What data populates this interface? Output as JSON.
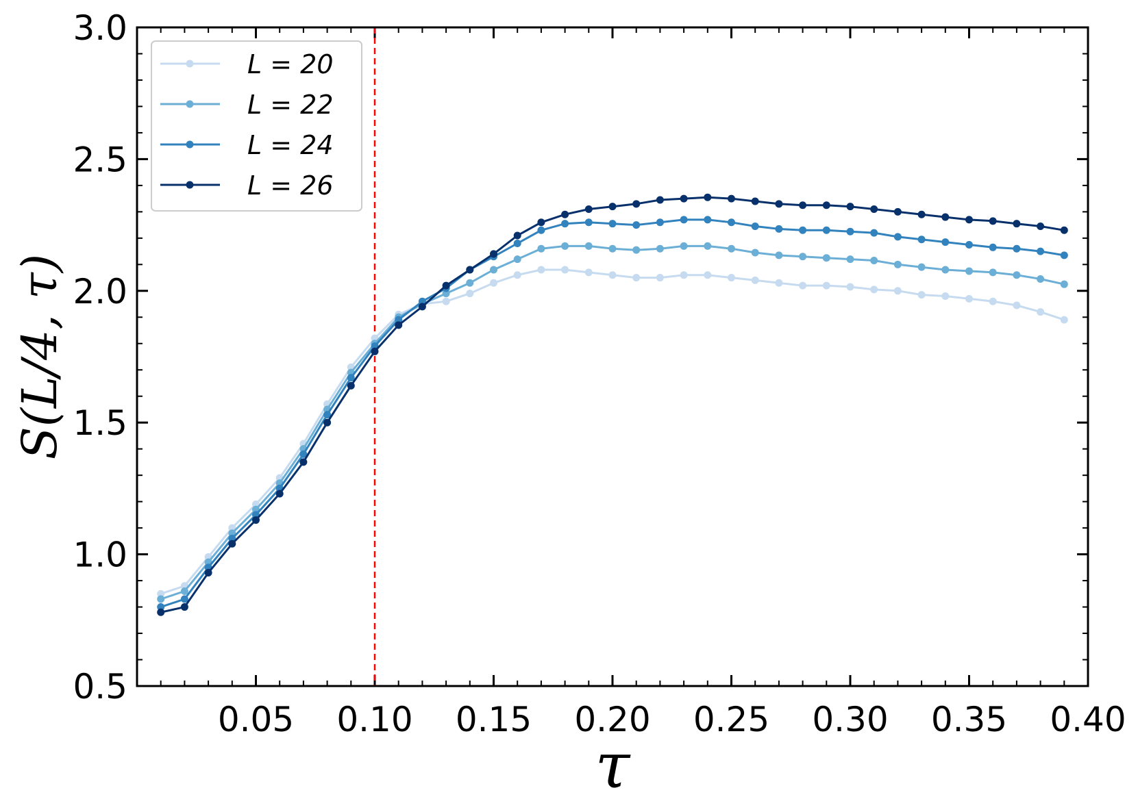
{
  "chart_data": {
    "type": "line",
    "title": "",
    "xlabel": "τ",
    "ylabel": "S(L/4, τ)",
    "xlim": [
      0.0,
      0.4
    ],
    "ylim": [
      0.5,
      3.0
    ],
    "xticks": [
      "0.05",
      "0.10",
      "0.15",
      "0.20",
      "0.25",
      "0.30",
      "0.35",
      "0.40"
    ],
    "yticks": [
      "0.5",
      "1.0",
      "1.5",
      "2.0",
      "2.5",
      "3.0"
    ],
    "legend_position": "top-left",
    "grid": false,
    "reference_line": {
      "orientation": "vertical",
      "x": 0.1,
      "style": "dashed",
      "color": "#ff0000"
    },
    "x": [
      0.01,
      0.02,
      0.03,
      0.04,
      0.05,
      0.06,
      0.07,
      0.08,
      0.09,
      0.1,
      0.11,
      0.12,
      0.13,
      0.14,
      0.15,
      0.16,
      0.17,
      0.18,
      0.19,
      0.2,
      0.21,
      0.22,
      0.23,
      0.24,
      0.25,
      0.26,
      0.27,
      0.28,
      0.29,
      0.3,
      0.31,
      0.32,
      0.33,
      0.34,
      0.35,
      0.36,
      0.37,
      0.38,
      0.39
    ],
    "series": [
      {
        "name": "L = 20",
        "color": "#c6dbef",
        "values": [
          0.85,
          0.88,
          0.99,
          1.1,
          1.19,
          1.29,
          1.42,
          1.57,
          1.71,
          1.82,
          1.91,
          1.95,
          1.96,
          1.99,
          2.03,
          2.06,
          2.08,
          2.08,
          2.07,
          2.06,
          2.05,
          2.05,
          2.06,
          2.06,
          2.05,
          2.04,
          2.03,
          2.02,
          2.02,
          2.015,
          2.005,
          2.0,
          1.985,
          1.98,
          1.97,
          1.96,
          1.945,
          1.92,
          1.89
        ]
      },
      {
        "name": "L = 22",
        "color": "#6baed6",
        "values": [
          0.83,
          0.86,
          0.97,
          1.08,
          1.17,
          1.27,
          1.4,
          1.55,
          1.69,
          1.8,
          1.9,
          1.95,
          1.99,
          2.03,
          2.08,
          2.12,
          2.16,
          2.17,
          2.17,
          2.16,
          2.155,
          2.16,
          2.17,
          2.17,
          2.16,
          2.145,
          2.135,
          2.13,
          2.125,
          2.12,
          2.115,
          2.1,
          2.09,
          2.08,
          2.075,
          2.07,
          2.06,
          2.045,
          2.025
        ]
      },
      {
        "name": "L = 24",
        "color": "#3182bd",
        "values": [
          0.8,
          0.83,
          0.95,
          1.06,
          1.15,
          1.25,
          1.38,
          1.53,
          1.67,
          1.79,
          1.89,
          1.96,
          2.01,
          2.08,
          2.13,
          2.18,
          2.23,
          2.255,
          2.26,
          2.255,
          2.25,
          2.26,
          2.27,
          2.27,
          2.26,
          2.245,
          2.235,
          2.23,
          2.23,
          2.225,
          2.22,
          2.205,
          2.195,
          2.185,
          2.175,
          2.165,
          2.16,
          2.15,
          2.135
        ]
      },
      {
        "name": "L = 26",
        "color": "#08306b",
        "values": [
          0.78,
          0.8,
          0.93,
          1.04,
          1.13,
          1.23,
          1.35,
          1.5,
          1.64,
          1.77,
          1.87,
          1.94,
          2.02,
          2.08,
          2.14,
          2.21,
          2.26,
          2.29,
          2.31,
          2.32,
          2.33,
          2.345,
          2.35,
          2.355,
          2.35,
          2.34,
          2.33,
          2.325,
          2.325,
          2.32,
          2.31,
          2.3,
          2.29,
          2.28,
          2.27,
          2.265,
          2.255,
          2.245,
          2.23
        ]
      }
    ]
  }
}
